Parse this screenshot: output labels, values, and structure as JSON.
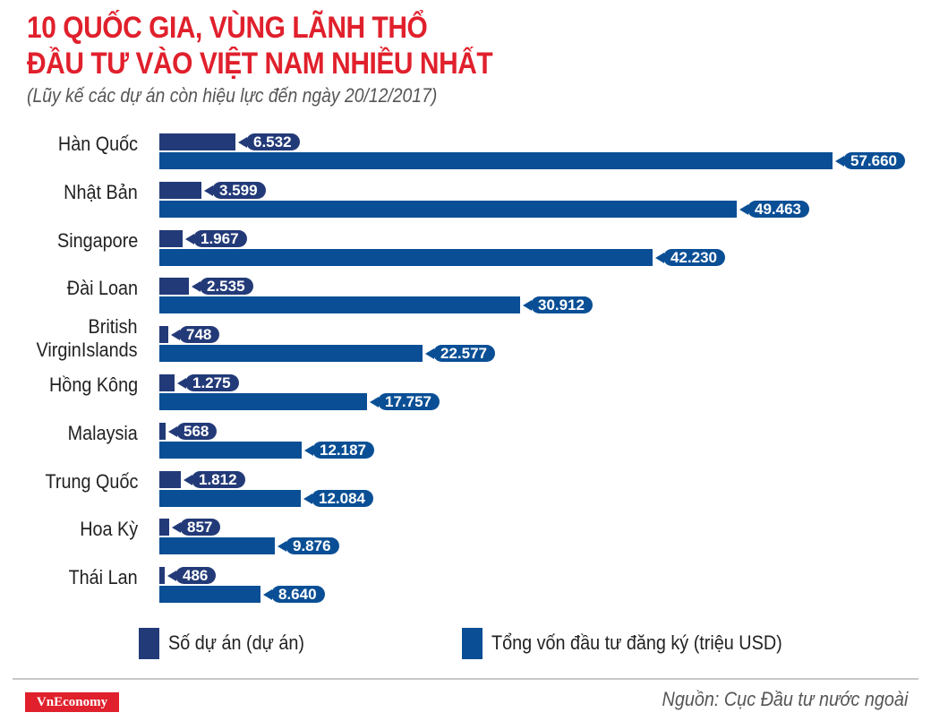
{
  "header": {
    "title_line1": "10 QUỐC GIA, VÙNG LÃNH THỔ",
    "title_line2": "ĐẦU TƯ VÀO VIỆT NAM NHIỀU NHẤT",
    "subtitle": "(Lũy kế các dự án còn hiệu lực đến ngày 20/12/2017)"
  },
  "legend": {
    "count_label": "Số dự án (dự án)",
    "capital_label": "Tổng vốn đầu tư đăng ký (triệu USD)"
  },
  "footer": {
    "brand": "VnEconomy",
    "source": "Nguồn: Cục Đầu tư nước ngoài"
  },
  "colors": {
    "title": "#e0202c",
    "count_series": "#233a78",
    "capital_series": "#0a4f95",
    "brand_bg": "#e0202c"
  },
  "chart_data": {
    "type": "bar",
    "orientation": "horizontal",
    "title": "10 QUỐC GIA, VÙNG LÃNH THỔ ĐẦU TƯ VÀO VIỆT NAM NHIỀU NHẤT",
    "subtitle": "(Lũy kế các dự án còn hiệu lực đến ngày 20/12/2017)",
    "xlabel": "",
    "ylabel": "",
    "grid": false,
    "legend_position": "bottom",
    "categories": [
      "Hàn Quốc",
      "Nhật Bản",
      "Singapore",
      "Đài Loan",
      "British VirginIslands",
      "Hồng Kông",
      "Malaysia",
      "Trung Quốc",
      "Hoa Kỳ",
      "Thái Lan"
    ],
    "category_label_lines": [
      [
        "Hàn Quốc"
      ],
      [
        "Nhật Bản"
      ],
      [
        "Singapore"
      ],
      [
        "Đài Loan"
      ],
      [
        "British",
        "VirginIslands"
      ],
      [
        "Hồng Kông"
      ],
      [
        "Malaysia"
      ],
      [
        "Trung Quốc"
      ],
      [
        "Hoa Kỳ"
      ],
      [
        "Thái Lan"
      ]
    ],
    "series": [
      {
        "name": "Số dự án (dự án)",
        "color": "#233a78",
        "values": [
          6532,
          3599,
          1967,
          2535,
          748,
          1275,
          568,
          1812,
          857,
          486
        ],
        "labels": [
          "6.532",
          "3.599",
          "1.967",
          "2.535",
          "748",
          "1.275",
          "568",
          "1.812",
          "857",
          "486"
        ]
      },
      {
        "name": "Tổng vốn đầu tư đăng ký (triệu USD)",
        "color": "#0a4f95",
        "values": [
          57660,
          49463,
          42230,
          30912,
          22577,
          17757,
          12187,
          12084,
          9876,
          8640
        ],
        "labels": [
          "57.660",
          "49.463",
          "42.230",
          "30.912",
          "22.577",
          "17.757",
          "12.187",
          "12.084",
          "9.876",
          "8.640"
        ]
      }
    ],
    "source": "Nguồn: Cục Đầu tư nước ngoài"
  }
}
